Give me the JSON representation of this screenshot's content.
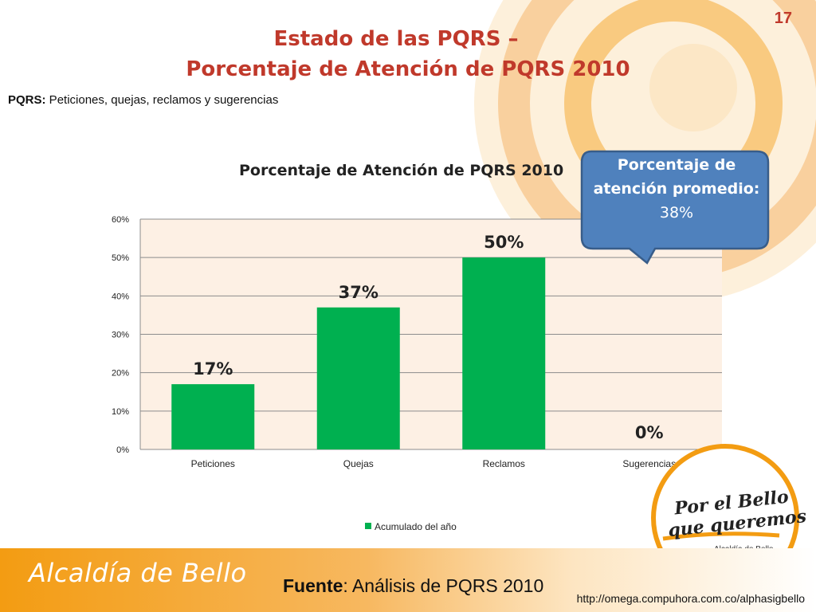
{
  "page_number": "17",
  "title": {
    "line1": "Estado de las PQRS –",
    "line2": "Porcentaje de Atención de PQRS 2010"
  },
  "subtitle": {
    "label": "PQRS:",
    "text": " Peticiones, quejas, reclamos y sugerencias"
  },
  "callout": {
    "label": "Porcentaje de atención promedio:",
    "value": "38%"
  },
  "footer": {
    "brand": "Alcaldía de Bello",
    "fuente_label": "Fuente",
    "fuente_text": ": Análisis de PQRS 2010",
    "url": "http://omega.compuhora.com.co/alphasigbello"
  },
  "logo": {
    "line1": "Por el Bello",
    "line2": "que queremos",
    "line3": "Alcaldía de Bello"
  },
  "colors": {
    "accent_red": "#c0392b",
    "bar_green": "#00b050",
    "callout_blue": "#4f81bd",
    "callout_border": "#385d8a",
    "orange": "#f39c12"
  },
  "chart_data": {
    "type": "bar",
    "title": "Porcentaje de Atención de PQRS 2010",
    "categories": [
      "Peticiones",
      "Quejas",
      "Reclamos",
      "Sugerencias"
    ],
    "series": [
      {
        "name": "Acumulado del año",
        "values": [
          0.17,
          0.37,
          0.5,
          0.0
        ],
        "data_labels": [
          "17%",
          "37%",
          "50%",
          "0%"
        ]
      }
    ],
    "y_ticks": [
      "0%",
      "10%",
      "20%",
      "30%",
      "40%",
      "50%",
      "60%"
    ],
    "ylim": [
      0,
      0.6
    ],
    "grid": true,
    "legend_position": "bottom"
  }
}
